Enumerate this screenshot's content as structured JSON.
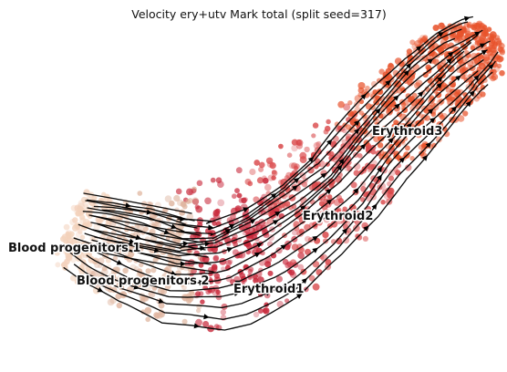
{
  "chart_data": {
    "type": "scatter",
    "title": "Velocity ery+utv Mark total (split seed=317)",
    "overlay": "velocity streamlines with arrowheads",
    "axes": "none",
    "legend": "none",
    "clusters": [
      {
        "name": "Blood progenitors 1",
        "color": "#f3d2bc"
      },
      {
        "name": "Blood progenitors 2",
        "color": "#e0b6a0"
      },
      {
        "name": "Erythroid1",
        "color": "#c8283a"
      },
      {
        "name": "Erythroid2",
        "color": "#d9484a"
      },
      {
        "name": "Erythroid3",
        "color": "#e8532c"
      }
    ]
  }
}
